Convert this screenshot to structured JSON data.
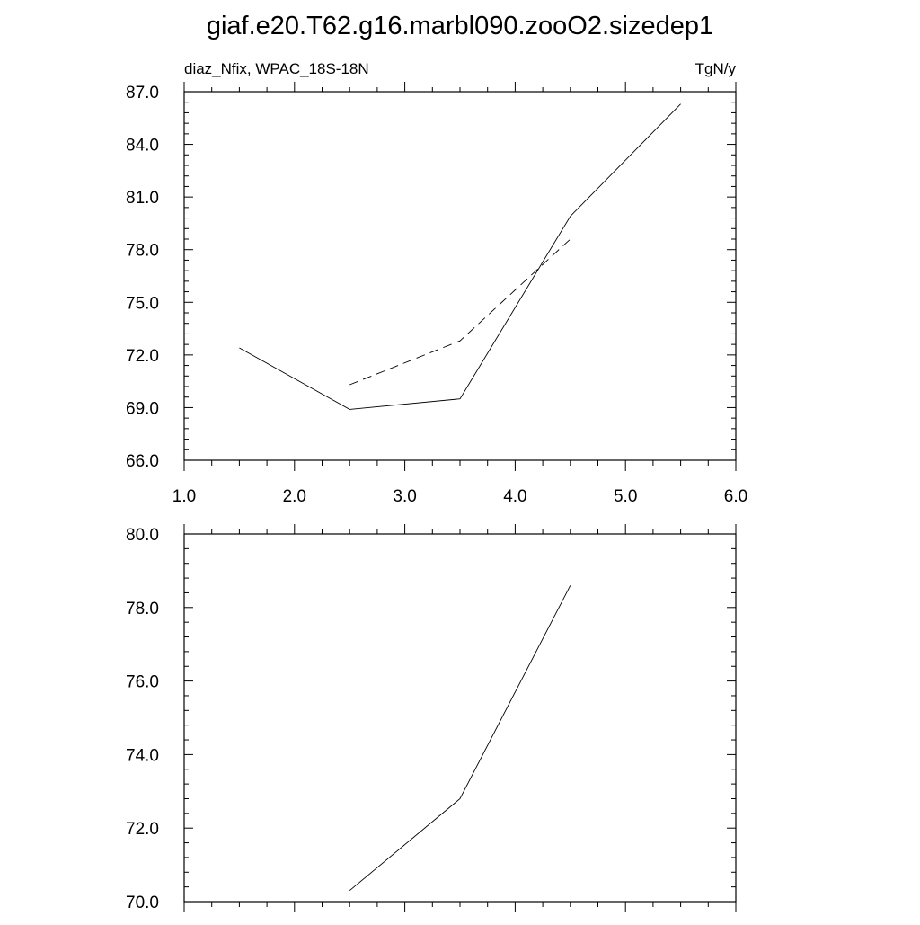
{
  "title": "giaf.e20.T62.g16.marbl090.zooO2.sizedep1",
  "chart_data": [
    {
      "type": "line",
      "left_label": "diaz_Nfix, WPAC_18S-18N",
      "right_label": "TgN/y",
      "xlim": [
        1.0,
        6.0
      ],
      "ylim": [
        66.0,
        87.0
      ],
      "xticks": [
        "1.0",
        "2.0",
        "3.0",
        "4.0",
        "5.0",
        "6.0"
      ],
      "yticks": [
        "66.0",
        "69.0",
        "72.0",
        "75.0",
        "78.0",
        "81.0",
        "84.0",
        "87.0"
      ],
      "series": [
        {
          "style": "solid",
          "x": [
            1.5,
            2.5,
            3.5,
            4.5,
            5.5
          ],
          "y": [
            72.4,
            68.9,
            69.5,
            79.9,
            86.3
          ]
        },
        {
          "style": "dashed",
          "x": [
            2.5,
            3.5,
            4.5
          ],
          "y": [
            70.3,
            72.8,
            78.6
          ]
        }
      ],
      "grid": false
    },
    {
      "type": "line",
      "xlim": [
        1.0,
        6.0
      ],
      "ylim": [
        70.0,
        80.0
      ],
      "xticks": [],
      "yticks": [
        "70.0",
        "72.0",
        "74.0",
        "76.0",
        "78.0",
        "80.0"
      ],
      "series": [
        {
          "style": "solid",
          "x": [
            2.5,
            3.5,
            4.5
          ],
          "y": [
            70.3,
            72.8,
            78.6
          ]
        }
      ],
      "grid": false
    }
  ]
}
